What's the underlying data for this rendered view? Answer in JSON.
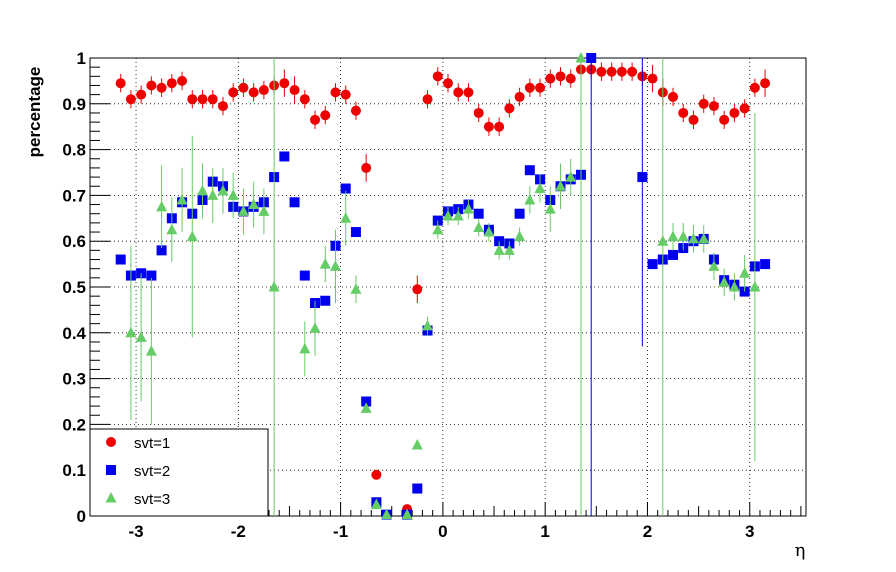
{
  "chart_data": {
    "type": "scatter",
    "xlabel": "η",
    "ylabel": "percentage",
    "xlim": [
      -3.45,
      3.55
    ],
    "ylim": [
      0,
      1
    ],
    "grid": true,
    "legend_position": "bottom-left",
    "xticks": [
      "-3",
      "-2",
      "-1",
      "0",
      "1",
      "2",
      "3"
    ],
    "yticks": [
      "0",
      "0.1",
      "0.2",
      "0.3",
      "0.4",
      "0.5",
      "0.6",
      "0.7",
      "0.8",
      "0.9",
      "1"
    ],
    "series": [
      {
        "name": "svt=1",
        "color": "#ee0000",
        "marker": "circle",
        "points": [
          {
            "x": -3.15,
            "y": 0.945,
            "e": 0.02
          },
          {
            "x": -3.05,
            "y": 0.91,
            "e": 0.02
          },
          {
            "x": -2.95,
            "y": 0.92,
            "e": 0.02
          },
          {
            "x": -2.85,
            "y": 0.94,
            "e": 0.02
          },
          {
            "x": -2.75,
            "y": 0.935,
            "e": 0.02
          },
          {
            "x": -2.65,
            "y": 0.945,
            "e": 0.02
          },
          {
            "x": -2.55,
            "y": 0.95,
            "e": 0.02
          },
          {
            "x": -2.45,
            "y": 0.91,
            "e": 0.02
          },
          {
            "x": -2.35,
            "y": 0.91,
            "e": 0.02
          },
          {
            "x": -2.25,
            "y": 0.91,
            "e": 0.02
          },
          {
            "x": -2.15,
            "y": 0.895,
            "e": 0.02
          },
          {
            "x": -2.05,
            "y": 0.925,
            "e": 0.02
          },
          {
            "x": -1.95,
            "y": 0.935,
            "e": 0.02
          },
          {
            "x": -1.85,
            "y": 0.925,
            "e": 0.02
          },
          {
            "x": -1.75,
            "y": 0.93,
            "e": 0.02
          },
          {
            "x": -1.65,
            "y": 0.94,
            "e": 0.02
          },
          {
            "x": -1.55,
            "y": 0.945,
            "e": 0.03
          },
          {
            "x": -1.45,
            "y": 0.93,
            "e": 0.03
          },
          {
            "x": -1.35,
            "y": 0.91,
            "e": 0.02
          },
          {
            "x": -1.25,
            "y": 0.865,
            "e": 0.02
          },
          {
            "x": -1.15,
            "y": 0.875,
            "e": 0.02
          },
          {
            "x": -1.05,
            "y": 0.925,
            "e": 0.02
          },
          {
            "x": -0.95,
            "y": 0.92,
            "e": 0.02
          },
          {
            "x": -0.85,
            "y": 0.885,
            "e": 0.02
          },
          {
            "x": -0.75,
            "y": 0.76,
            "e": 0.03
          },
          {
            "x": -0.65,
            "y": 0.09,
            "e": 0.01
          },
          {
            "x": -0.35,
            "y": 0.015,
            "e": 0.01
          },
          {
            "x": -0.25,
            "y": 0.495,
            "e": 0.03
          },
          {
            "x": -0.15,
            "y": 0.91,
            "e": 0.02
          },
          {
            "x": -0.05,
            "y": 0.96,
            "e": 0.02
          },
          {
            "x": 0.05,
            "y": 0.945,
            "e": 0.02
          },
          {
            "x": 0.15,
            "y": 0.925,
            "e": 0.02
          },
          {
            "x": 0.25,
            "y": 0.925,
            "e": 0.02
          },
          {
            "x": 0.35,
            "y": 0.88,
            "e": 0.02
          },
          {
            "x": 0.45,
            "y": 0.85,
            "e": 0.02
          },
          {
            "x": 0.55,
            "y": 0.85,
            "e": 0.02
          },
          {
            "x": 0.65,
            "y": 0.89,
            "e": 0.02
          },
          {
            "x": 0.75,
            "y": 0.915,
            "e": 0.02
          },
          {
            "x": 0.85,
            "y": 0.935,
            "e": 0.02
          },
          {
            "x": 0.95,
            "y": 0.935,
            "e": 0.02
          },
          {
            "x": 1.05,
            "y": 0.955,
            "e": 0.02
          },
          {
            "x": 1.15,
            "y": 0.96,
            "e": 0.02
          },
          {
            "x": 1.25,
            "y": 0.955,
            "e": 0.02
          },
          {
            "x": 1.35,
            "y": 0.975,
            "e": 0.02
          },
          {
            "x": 1.45,
            "y": 0.975,
            "e": 0.02
          },
          {
            "x": 1.55,
            "y": 0.97,
            "e": 0.02
          },
          {
            "x": 1.65,
            "y": 0.97,
            "e": 0.02
          },
          {
            "x": 1.75,
            "y": 0.97,
            "e": 0.02
          },
          {
            "x": 1.85,
            "y": 0.97,
            "e": 0.02
          },
          {
            "x": 1.95,
            "y": 0.96,
            "e": 0.02
          },
          {
            "x": 2.05,
            "y": 0.955,
            "e": 0.03
          },
          {
            "x": 2.15,
            "y": 0.925,
            "e": 0.03
          },
          {
            "x": 2.25,
            "y": 0.915,
            "e": 0.02
          },
          {
            "x": 2.35,
            "y": 0.88,
            "e": 0.02
          },
          {
            "x": 2.45,
            "y": 0.865,
            "e": 0.02
          },
          {
            "x": 2.55,
            "y": 0.9,
            "e": 0.02
          },
          {
            "x": 2.65,
            "y": 0.895,
            "e": 0.02
          },
          {
            "x": 2.75,
            "y": 0.865,
            "e": 0.02
          },
          {
            "x": 2.85,
            "y": 0.88,
            "e": 0.02
          },
          {
            "x": 2.95,
            "y": 0.89,
            "e": 0.02
          },
          {
            "x": 3.05,
            "y": 0.935,
            "e": 0.02
          },
          {
            "x": 3.15,
            "y": 0.945,
            "e": 0.03
          }
        ]
      },
      {
        "name": "svt=2",
        "color": "#0000ee",
        "marker": "square",
        "points": [
          {
            "x": -3.15,
            "y": 0.56,
            "e": 0.01
          },
          {
            "x": -3.05,
            "y": 0.525,
            "e": 0.01
          },
          {
            "x": -2.95,
            "y": 0.53,
            "e": 0.01
          },
          {
            "x": -2.85,
            "y": 0.525,
            "e": 0.01
          },
          {
            "x": -2.75,
            "y": 0.58,
            "e": 0.01
          },
          {
            "x": -2.65,
            "y": 0.65,
            "e": 0.01
          },
          {
            "x": -2.55,
            "y": 0.685,
            "e": 0.01
          },
          {
            "x": -2.45,
            "y": 0.66,
            "e": 0.01
          },
          {
            "x": -2.35,
            "y": 0.69,
            "e": 0.01
          },
          {
            "x": -2.25,
            "y": 0.73,
            "e": 0.01
          },
          {
            "x": -2.15,
            "y": 0.72,
            "e": 0.01
          },
          {
            "x": -2.05,
            "y": 0.675,
            "e": 0.01
          },
          {
            "x": -1.95,
            "y": 0.665,
            "e": 0.01
          },
          {
            "x": -1.85,
            "y": 0.675,
            "e": 0.01
          },
          {
            "x": -1.75,
            "y": 0.685,
            "e": 0.01
          },
          {
            "x": -1.65,
            "y": 0.74,
            "e": 0.01
          },
          {
            "x": -1.55,
            "y": 0.785,
            "e": 0.01
          },
          {
            "x": -1.45,
            "y": 0.685,
            "e": 0.01
          },
          {
            "x": -1.35,
            "y": 0.525,
            "e": 0.01
          },
          {
            "x": -1.25,
            "y": 0.465,
            "e": 0.01
          },
          {
            "x": -1.15,
            "y": 0.47,
            "e": 0.01
          },
          {
            "x": -1.05,
            "y": 0.59,
            "e": 0.01
          },
          {
            "x": -0.95,
            "y": 0.715,
            "e": 0.01
          },
          {
            "x": -0.85,
            "y": 0.62,
            "e": 0.01
          },
          {
            "x": -0.75,
            "y": 0.25,
            "e": 0.01
          },
          {
            "x": -0.65,
            "y": 0.03,
            "e": 0.005
          },
          {
            "x": -0.55,
            "y": 0.003,
            "e": 0.003
          },
          {
            "x": -0.35,
            "y": 0.003,
            "e": 0.003
          },
          {
            "x": -0.25,
            "y": 0.06,
            "e": 0.005
          },
          {
            "x": -0.15,
            "y": 0.405,
            "e": 0.01
          },
          {
            "x": -0.05,
            "y": 0.645,
            "e": 0.01
          },
          {
            "x": 0.05,
            "y": 0.665,
            "e": 0.01
          },
          {
            "x": 0.15,
            "y": 0.67,
            "e": 0.01
          },
          {
            "x": 0.25,
            "y": 0.68,
            "e": 0.01
          },
          {
            "x": 0.35,
            "y": 0.66,
            "e": 0.01
          },
          {
            "x": 0.45,
            "y": 0.625,
            "e": 0.01
          },
          {
            "x": 0.55,
            "y": 0.6,
            "e": 0.01
          },
          {
            "x": 0.65,
            "y": 0.595,
            "e": 0.01
          },
          {
            "x": 0.75,
            "y": 0.66,
            "e": 0.01
          },
          {
            "x": 0.85,
            "y": 0.755,
            "e": 0.01
          },
          {
            "x": 0.95,
            "y": 0.735,
            "e": 0.01
          },
          {
            "x": 1.05,
            "y": 0.69,
            "e": 0.01
          },
          {
            "x": 1.15,
            "y": 0.72,
            "e": 0.01
          },
          {
            "x": 1.25,
            "y": 0.735,
            "e": 0.01
          },
          {
            "x": 1.35,
            "y": 0.745,
            "e": 0.01
          },
          {
            "x": 1.45,
            "y": 1.0,
            "e": 1.0
          },
          {
            "x": 1.95,
            "y": 0.74,
            "e": 0.37
          },
          {
            "x": 2.05,
            "y": 0.55,
            "e": 0.01
          },
          {
            "x": 2.15,
            "y": 0.56,
            "e": 0.01
          },
          {
            "x": 2.25,
            "y": 0.57,
            "e": 0.01
          },
          {
            "x": 2.35,
            "y": 0.585,
            "e": 0.01
          },
          {
            "x": 2.45,
            "y": 0.6,
            "e": 0.01
          },
          {
            "x": 2.55,
            "y": 0.605,
            "e": 0.01
          },
          {
            "x": 2.65,
            "y": 0.56,
            "e": 0.01
          },
          {
            "x": 2.75,
            "y": 0.515,
            "e": 0.01
          },
          {
            "x": 2.85,
            "y": 0.505,
            "e": 0.01
          },
          {
            "x": 2.95,
            "y": 0.49,
            "e": 0.01
          },
          {
            "x": 3.05,
            "y": 0.545,
            "e": 0.01
          },
          {
            "x": 3.15,
            "y": 0.55,
            "e": 0.01
          }
        ]
      },
      {
        "name": "svt=3",
        "color": "#66cc66",
        "marker": "triangle",
        "points": [
          {
            "x": -3.05,
            "y": 0.4,
            "e": 0.19
          },
          {
            "x": -2.95,
            "y": 0.39,
            "e": 0.14
          },
          {
            "x": -2.85,
            "y": 0.36,
            "e": 0.16
          },
          {
            "x": -2.75,
            "y": 0.675,
            "e": 0.09
          },
          {
            "x": -2.65,
            "y": 0.625,
            "e": 0.07
          },
          {
            "x": -2.55,
            "y": 0.69,
            "e": 0.07
          },
          {
            "x": -2.45,
            "y": 0.61,
            "e": 0.22
          },
          {
            "x": -2.35,
            "y": 0.71,
            "e": 0.06
          },
          {
            "x": -2.25,
            "y": 0.7,
            "e": 0.06
          },
          {
            "x": -2.15,
            "y": 0.71,
            "e": 0.05
          },
          {
            "x": -2.05,
            "y": 0.7,
            "e": 0.05
          },
          {
            "x": -1.95,
            "y": 0.665,
            "e": 0.05
          },
          {
            "x": -1.85,
            "y": 0.68,
            "e": 0.05
          },
          {
            "x": -1.75,
            "y": 0.665,
            "e": 0.05
          },
          {
            "x": -1.65,
            "y": 0.5,
            "e": 0.5
          },
          {
            "x": -1.35,
            "y": 0.365,
            "e": 0.06
          },
          {
            "x": -1.25,
            "y": 0.41,
            "e": 0.06
          },
          {
            "x": -1.15,
            "y": 0.55,
            "e": 0.04
          },
          {
            "x": -1.05,
            "y": 0.545,
            "e": 0.08
          },
          {
            "x": -0.95,
            "y": 0.65,
            "e": 0.06
          },
          {
            "x": -0.85,
            "y": 0.495,
            "e": 0.03
          },
          {
            "x": -0.75,
            "y": 0.235,
            "e": 0.01
          },
          {
            "x": -0.65,
            "y": 0.025,
            "e": 0.01
          },
          {
            "x": -0.55,
            "y": 0.003,
            "e": 0.003
          },
          {
            "x": -0.35,
            "y": 0.003,
            "e": 0.003
          },
          {
            "x": -0.25,
            "y": 0.155,
            "e": 0.01
          },
          {
            "x": -0.15,
            "y": 0.415,
            "e": 0.02
          },
          {
            "x": -0.05,
            "y": 0.625,
            "e": 0.02
          },
          {
            "x": 0.05,
            "y": 0.655,
            "e": 0.02
          },
          {
            "x": 0.15,
            "y": 0.655,
            "e": 0.02
          },
          {
            "x": 0.25,
            "y": 0.67,
            "e": 0.02
          },
          {
            "x": 0.35,
            "y": 0.63,
            "e": 0.02
          },
          {
            "x": 0.45,
            "y": 0.62,
            "e": 0.02
          },
          {
            "x": 0.55,
            "y": 0.58,
            "e": 0.02
          },
          {
            "x": 0.65,
            "y": 0.58,
            "e": 0.02
          },
          {
            "x": 0.75,
            "y": 0.61,
            "e": 0.02
          },
          {
            "x": 0.85,
            "y": 0.69,
            "e": 0.03
          },
          {
            "x": 0.95,
            "y": 0.715,
            "e": 0.03
          },
          {
            "x": 1.05,
            "y": 0.67,
            "e": 0.05
          },
          {
            "x": 1.15,
            "y": 0.72,
            "e": 0.05
          },
          {
            "x": 1.25,
            "y": 0.74,
            "e": 0.04
          },
          {
            "x": 1.35,
            "y": 1.0,
            "e": 1.0
          },
          {
            "x": 2.15,
            "y": 0.6,
            "e": 0.6
          },
          {
            "x": 2.25,
            "y": 0.61,
            "e": 0.03
          },
          {
            "x": 2.35,
            "y": 0.61,
            "e": 0.03
          },
          {
            "x": 2.45,
            "y": 0.605,
            "e": 0.03
          },
          {
            "x": 2.55,
            "y": 0.605,
            "e": 0.03
          },
          {
            "x": 2.65,
            "y": 0.545,
            "e": 0.03
          },
          {
            "x": 2.75,
            "y": 0.51,
            "e": 0.03
          },
          {
            "x": 2.85,
            "y": 0.5,
            "e": 0.03
          },
          {
            "x": 2.95,
            "y": 0.53,
            "e": 0.04
          },
          {
            "x": 3.05,
            "y": 0.5,
            "e": 0.38
          }
        ]
      }
    ]
  }
}
